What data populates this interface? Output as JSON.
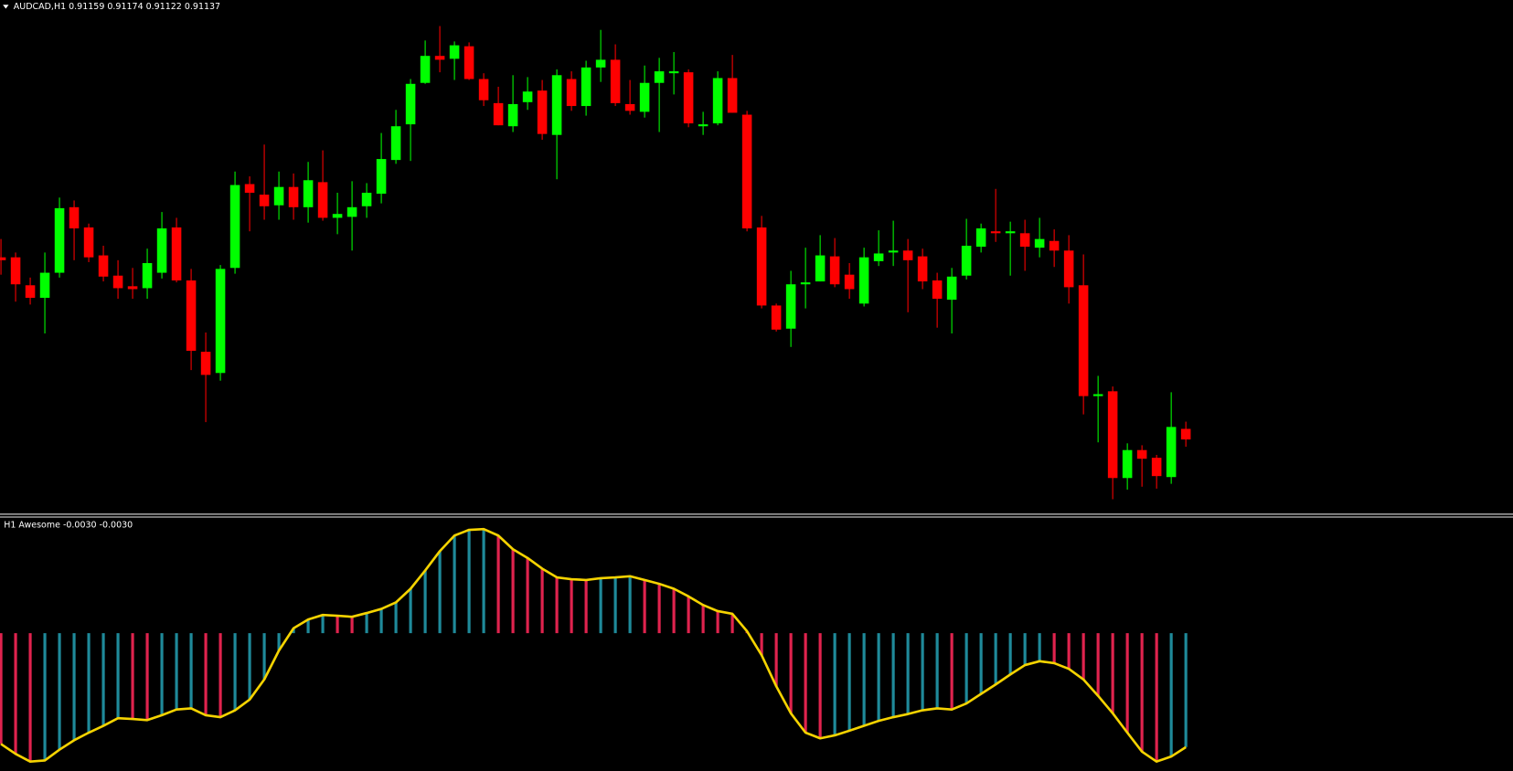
{
  "chart_data": [
    {
      "type": "candlestick",
      "title": "AUDCAD,H1  0.91159 0.91174 0.91122 0.91137",
      "open": [
        0.91515,
        0.91515,
        0.91457,
        0.91431,
        0.91483,
        0.91619,
        0.91577,
        0.91519,
        0.91477,
        0.91455,
        0.91451,
        0.91483,
        0.91577,
        0.91467,
        0.91319,
        0.91275,
        0.91493,
        0.91667,
        0.91645,
        0.91623,
        0.91661,
        0.91619,
        0.91671,
        0.91597,
        0.91599,
        0.91621,
        0.91647,
        0.91717,
        0.91791,
        0.91877,
        0.91933,
        0.91927,
        0.91953,
        0.91885,
        0.91835,
        0.91787,
        0.91837,
        0.91861,
        0.91769,
        0.91885,
        0.91829,
        0.91909,
        0.91925,
        0.91833,
        0.91817,
        0.91877,
        0.91899,
        0.91899,
        0.91789,
        0.91793,
        0.91887,
        0.91811,
        0.91577,
        0.91415,
        0.91367,
        0.91459,
        0.91465,
        0.91517,
        0.91479,
        0.91419,
        0.91507,
        0.91525,
        0.91529,
        0.91517,
        0.91467,
        0.91427,
        0.91477,
        0.91537,
        0.91569,
        0.91567,
        0.91565,
        0.91535,
        0.91549,
        0.91529,
        0.91457,
        0.91229,
        0.91237,
        0.91057,
        0.91115,
        0.91099,
        0.91059,
        0.91159
      ],
      "high": [
        0.91553,
        0.91525,
        0.91473,
        0.91525,
        0.91639,
        0.91633,
        0.91585,
        0.91539,
        0.91509,
        0.91493,
        0.91533,
        0.91609,
        0.91597,
        0.91491,
        0.91359,
        0.91499,
        0.91693,
        0.91683,
        0.91749,
        0.91693,
        0.91689,
        0.91713,
        0.91737,
        0.91649,
        0.91673,
        0.91669,
        0.91773,
        0.91821,
        0.91885,
        0.91965,
        0.91995,
        0.91963,
        0.91961,
        0.91897,
        0.91869,
        0.91893,
        0.91889,
        0.91883,
        0.91905,
        0.91901,
        0.91923,
        0.91987,
        0.91957,
        0.91883,
        0.91913,
        0.91929,
        0.91941,
        0.91905,
        0.91817,
        0.91901,
        0.91935,
        0.91819,
        0.91601,
        0.91419,
        0.91487,
        0.91535,
        0.91561,
        0.91555,
        0.91503,
        0.91535,
        0.91571,
        0.91591,
        0.91553,
        0.91533,
        0.91483,
        0.91493,
        0.91595,
        0.91585,
        0.91657,
        0.91589,
        0.91593,
        0.91597,
        0.91573,
        0.91561,
        0.91521,
        0.91269,
        0.91247,
        0.91129,
        0.91125,
        0.91105,
        0.91235,
        0.91174
      ],
      "low": [
        0.91479,
        0.91423,
        0.91417,
        0.91357,
        0.91473,
        0.91509,
        0.91505,
        0.91465,
        0.91429,
        0.91429,
        0.91429,
        0.91471,
        0.91463,
        0.91281,
        0.91173,
        0.91259,
        0.91481,
        0.91569,
        0.91593,
        0.91593,
        0.91593,
        0.91587,
        0.91591,
        0.91563,
        0.91529,
        0.91597,
        0.91627,
        0.91709,
        0.91715,
        0.91875,
        0.91899,
        0.91883,
        0.91883,
        0.91829,
        0.91789,
        0.91775,
        0.91821,
        0.91759,
        0.91677,
        0.91819,
        0.91809,
        0.91879,
        0.91829,
        0.91811,
        0.91805,
        0.91775,
        0.91853,
        0.91785,
        0.91769,
        0.91789,
        0.91815,
        0.91569,
        0.91409,
        0.91361,
        0.91329,
        0.91409,
        0.91465,
        0.91453,
        0.91429,
        0.91413,
        0.91497,
        0.91497,
        0.91401,
        0.91449,
        0.91369,
        0.91357,
        0.91469,
        0.91525,
        0.91547,
        0.91477,
        0.91487,
        0.91515,
        0.91495,
        0.91419,
        0.91189,
        0.91131,
        0.91013,
        0.91033,
        0.91039,
        0.91035,
        0.91045,
        0.91122
      ],
      "close": [
        0.91509,
        0.91459,
        0.91431,
        0.91483,
        0.91617,
        0.91575,
        0.91515,
        0.91475,
        0.91451,
        0.91449,
        0.91503,
        0.91575,
        0.91467,
        0.91321,
        0.91271,
        0.91491,
        0.91665,
        0.91649,
        0.91621,
        0.91661,
        0.91619,
        0.91675,
        0.91597,
        0.91605,
        0.91619,
        0.91649,
        0.91719,
        0.91787,
        0.91875,
        0.91933,
        0.91925,
        0.91955,
        0.91885,
        0.91841,
        0.91789,
        0.91833,
        0.91859,
        0.91771,
        0.91893,
        0.91829,
        0.91909,
        0.91925,
        0.91835,
        0.91819,
        0.91877,
        0.91901,
        0.91901,
        0.91793,
        0.91791,
        0.91887,
        0.91815,
        0.91575,
        0.91415,
        0.91365,
        0.91459,
        0.91463,
        0.91519,
        0.91459,
        0.91449,
        0.91515,
        0.91523,
        0.91529,
        0.91509,
        0.91465,
        0.91429,
        0.91475,
        0.91539,
        0.91575,
        0.91567,
        0.91569,
        0.91537,
        0.91553,
        0.91529,
        0.91453,
        0.91227,
        0.91231,
        0.91057,
        0.91115,
        0.91097,
        0.91061,
        0.91163,
        0.91137
      ],
      "ylim": [
        0.90985,
        0.92049
      ],
      "up_color": "#00ff00",
      "down_color": "#ff0000"
    },
    {
      "type": "oscillator",
      "title": "H1 Awesome -0.0030 -0.0030",
      "values": [
        -0.00292,
        -0.00318,
        -0.00338,
        -0.00335,
        -0.00307,
        -0.00282,
        -0.00262,
        -0.00244,
        -0.00224,
        -0.00226,
        -0.00229,
        -0.00216,
        -0.00201,
        -0.00198,
        -0.00216,
        -0.00221,
        -0.00203,
        -0.00175,
        -0.00122,
        -0.00046,
        0.00013,
        0.00036,
        0.00048,
        0.00046,
        0.00043,
        0.00053,
        0.00064,
        0.00081,
        0.00117,
        0.00165,
        0.00216,
        0.00257,
        0.00272,
        0.00274,
        0.00257,
        0.00221,
        0.00198,
        0.0017,
        0.00147,
        0.00142,
        0.0014,
        0.00145,
        0.00147,
        0.0015,
        0.0014,
        0.0013,
        0.00117,
        0.00097,
        0.00074,
        0.00058,
        0.00051,
        5e-05,
        -0.00058,
        -0.0014,
        -0.00211,
        -0.00262,
        -0.00277,
        -0.00269,
        -0.00257,
        -0.00244,
        -0.00231,
        -0.00221,
        -0.00213,
        -0.00203,
        -0.00198,
        -0.00201,
        -0.00185,
        -0.0016,
        -0.00135,
        -0.00109,
        -0.00084,
        -0.00074,
        -0.00079,
        -0.00094,
        -0.00122,
        -0.00165,
        -0.00211,
        -0.00262,
        -0.00312,
        -0.00338,
        -0.00325,
        -0.003
      ],
      "ylim": [
        -0.00363,
        0.00302
      ],
      "up_color": "#1f8a9a",
      "down_color": "#e0234e",
      "line_color": "#f5d300"
    }
  ]
}
